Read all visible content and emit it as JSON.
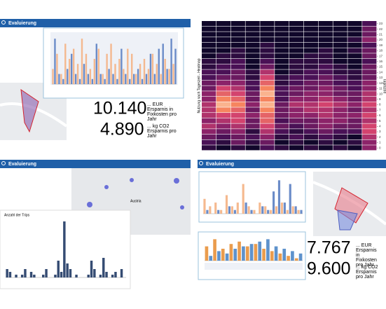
{
  "panels": [
    {
      "header": "Evaluierung",
      "chart": {
        "ylim": [
          0,
          10
        ],
        "series": [
          {
            "color": "#f4b183",
            "values": [
              3,
              6,
              2,
              8,
              5,
              7,
              4,
              9,
              6,
              3,
              5,
              7,
              2,
              6,
              8,
              4,
              5,
              3,
              7,
              6,
              2,
              4,
              5,
              3,
              6,
              4,
              2,
              5,
              3,
              4
            ]
          },
          {
            "color": "#5b7fc2",
            "values": [
              9,
              2,
              1,
              3,
              6,
              2,
              1,
              4,
              2,
              1,
              8,
              2,
              1,
              3,
              2,
              1,
              7,
              2,
              1,
              2,
              3,
              1,
              2,
              6,
              2,
              7,
              8,
              3,
              9,
              7
            ]
          }
        ]
      },
      "stats": [
        {
          "value": "10.140",
          "label": "... EUR Ersparnis in Fixkosten pro Jahr"
        },
        {
          "value": "4.890",
          "label": "... kg CO2 Ersparnis pro Jahr"
        }
      ]
    },
    {
      "heatmap": {
        "title": "Nutzung nach Tageszeit - Heatmap",
        "axis_label": "Tageszeit",
        "clim": [
          0,
          10
        ],
        "yticks": [
          0,
          1,
          2,
          3,
          4,
          5,
          6,
          7,
          8,
          9,
          10,
          11,
          12,
          13,
          14,
          15,
          16,
          17,
          18,
          19,
          20,
          21,
          22,
          23
        ],
        "values": [
          [
            1,
            0,
            1,
            0,
            2,
            1,
            0,
            1,
            0,
            1,
            0,
            4
          ],
          [
            2,
            1,
            3,
            1,
            3,
            0,
            1,
            0,
            1,
            0,
            1,
            4
          ],
          [
            3,
            2,
            3,
            2,
            4,
            1,
            2,
            1,
            2,
            1,
            0,
            5
          ],
          [
            4,
            3,
            4,
            1,
            5,
            2,
            1,
            2,
            3,
            2,
            2,
            6
          ],
          [
            5,
            4,
            5,
            3,
            6,
            3,
            2,
            3,
            4,
            3,
            3,
            6
          ],
          [
            4,
            5,
            6,
            3,
            7,
            2,
            3,
            3,
            4,
            4,
            3,
            5
          ],
          [
            5,
            6,
            6,
            4,
            7,
            3,
            4,
            4,
            5,
            4,
            4,
            6
          ],
          [
            5,
            8,
            7,
            3,
            8,
            3,
            4,
            5,
            5,
            4,
            3,
            5
          ],
          [
            5,
            9,
            8,
            4,
            9,
            3,
            5,
            5,
            6,
            5,
            4,
            6
          ],
          [
            4,
            8,
            7,
            3,
            8,
            2,
            4,
            4,
            5,
            4,
            3,
            5
          ],
          [
            4,
            7,
            6,
            3,
            9,
            2,
            3,
            4,
            4,
            3,
            3,
            5
          ],
          [
            3,
            6,
            5,
            2,
            8,
            2,
            3,
            3,
            4,
            3,
            2,
            4
          ],
          [
            3,
            4,
            4,
            2,
            7,
            1,
            2,
            3,
            3,
            2,
            2,
            4
          ],
          [
            2,
            3,
            3,
            1,
            6,
            1,
            2,
            2,
            3,
            2,
            1,
            3
          ],
          [
            2,
            2,
            3,
            1,
            5,
            0,
            1,
            2,
            2,
            1,
            1,
            3
          ],
          [
            1,
            2,
            2,
            0,
            3,
            0,
            1,
            1,
            2,
            1,
            0,
            3
          ],
          [
            1,
            1,
            2,
            0,
            2,
            0,
            1,
            1,
            1,
            0,
            0,
            2
          ],
          [
            0,
            1,
            1,
            0,
            1,
            0,
            0,
            1,
            1,
            0,
            0,
            3
          ],
          [
            0,
            0,
            1,
            0,
            1,
            0,
            0,
            0,
            1,
            0,
            1,
            3
          ],
          [
            0,
            0,
            0,
            0,
            1,
            0,
            0,
            0,
            0,
            0,
            0,
            2
          ],
          [
            0,
            0,
            0,
            0,
            0,
            0,
            0,
            0,
            0,
            0,
            1,
            4
          ],
          [
            0,
            0,
            0,
            0,
            0,
            0,
            0,
            0,
            0,
            0,
            0,
            3
          ],
          [
            0,
            0,
            0,
            0,
            0,
            0,
            0,
            0,
            0,
            0,
            0,
            3
          ],
          [
            0,
            0,
            0,
            0,
            0,
            0,
            0,
            0,
            0,
            0,
            0,
            2
          ]
        ]
      }
    },
    {
      "header": "Evaluierung",
      "map_label": "Austria",
      "chart": {
        "title": "Anzahl der Trips",
        "ylim": [
          0,
          20
        ],
        "series": [
          {
            "color": "#1f3864",
            "values": [
              3,
              2,
              0,
              1,
              0,
              1,
              3,
              0,
              2,
              1,
              0,
              0,
              1,
              3,
              0,
              0,
              1,
              6,
              2,
              20,
              5,
              3,
              0,
              1,
              0,
              0,
              0,
              1,
              6,
              3,
              0,
              1,
              7,
              2,
              0,
              1,
              2,
              0,
              3,
              0
            ]
          }
        ]
      }
    },
    {
      "header": "Evaluierung",
      "charts": [
        {
          "ylim": [
            0,
            10
          ],
          "series": [
            {
              "color": "#f4b183",
              "values": [
                4,
                2,
                3,
                1,
                5,
                2,
                3,
                8,
                2,
                1,
                3,
                2,
                1,
                2,
                3,
                1,
                2,
                1
              ]
            },
            {
              "color": "#5b7fc2",
              "values": [
                1,
                0,
                1,
                0,
                2,
                1,
                0,
                3,
                1,
                0,
                2,
                1,
                6,
                9,
                3,
                8,
                2,
                1
              ]
            }
          ]
        },
        {
          "ylim": [
            0,
            10
          ],
          "series": [
            {
              "color": "#e8913a",
              "values": [
                6,
                9,
                5,
                7,
                8,
                6,
                7,
                5,
                4,
                3,
                2,
                1
              ]
            },
            {
              "color": "#4d86c6",
              "values": [
                2,
                4,
                3,
                5,
                6,
                7,
                8,
                9,
                6,
                5,
                4,
                3
              ]
            }
          ]
        }
      ],
      "stats": [
        {
          "value": "7.767",
          "label": "... EUR Ersparnis in Fixkosten pro Jahr"
        },
        {
          "value": "9.600",
          "label": "... kg CO2 Ersparnis pro Jahr"
        }
      ]
    }
  ]
}
